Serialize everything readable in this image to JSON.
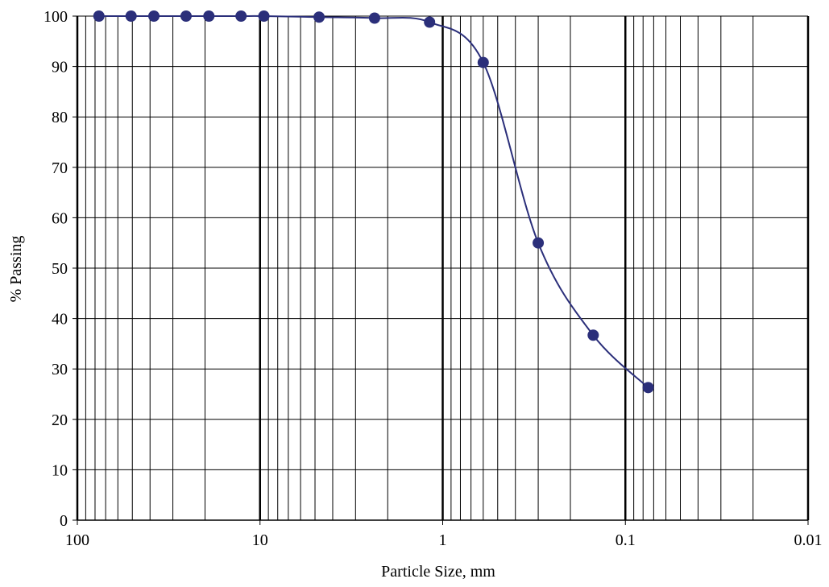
{
  "chart_data": {
    "type": "scatter",
    "title": "",
    "xlabel": "Particle Size, mm",
    "ylabel": "% Passing",
    "x_scale": "log",
    "x_reversed": true,
    "xlim": [
      100,
      0.01
    ],
    "ylim": [
      0,
      100
    ],
    "grid": true,
    "x_tick_labels": [
      "100",
      "10",
      "1",
      "0.1",
      "0.01"
    ],
    "x_ticks": [
      100,
      10,
      1,
      0.1,
      0.01
    ],
    "y_tick_labels": [
      "0",
      "10",
      "20",
      "30",
      "40",
      "50",
      "60",
      "70",
      "80",
      "90",
      "100"
    ],
    "y_ticks": [
      0,
      10,
      20,
      30,
      40,
      50,
      60,
      70,
      80,
      90,
      100
    ],
    "series": [
      {
        "x": [
          76.2,
          50.8,
          38.1,
          25.4,
          19.05,
          12.7,
          9.525,
          4.75,
          2.36,
          1.18,
          0.6,
          0.3,
          0.15,
          0.075
        ],
        "y": [
          100,
          100,
          100,
          100,
          100,
          100,
          100,
          99.8,
          99.6,
          98.8,
          90.8,
          55,
          36.7,
          26.3
        ],
        "color": "#2b2f7a",
        "marker": "circle",
        "line": "smooth"
      }
    ]
  }
}
